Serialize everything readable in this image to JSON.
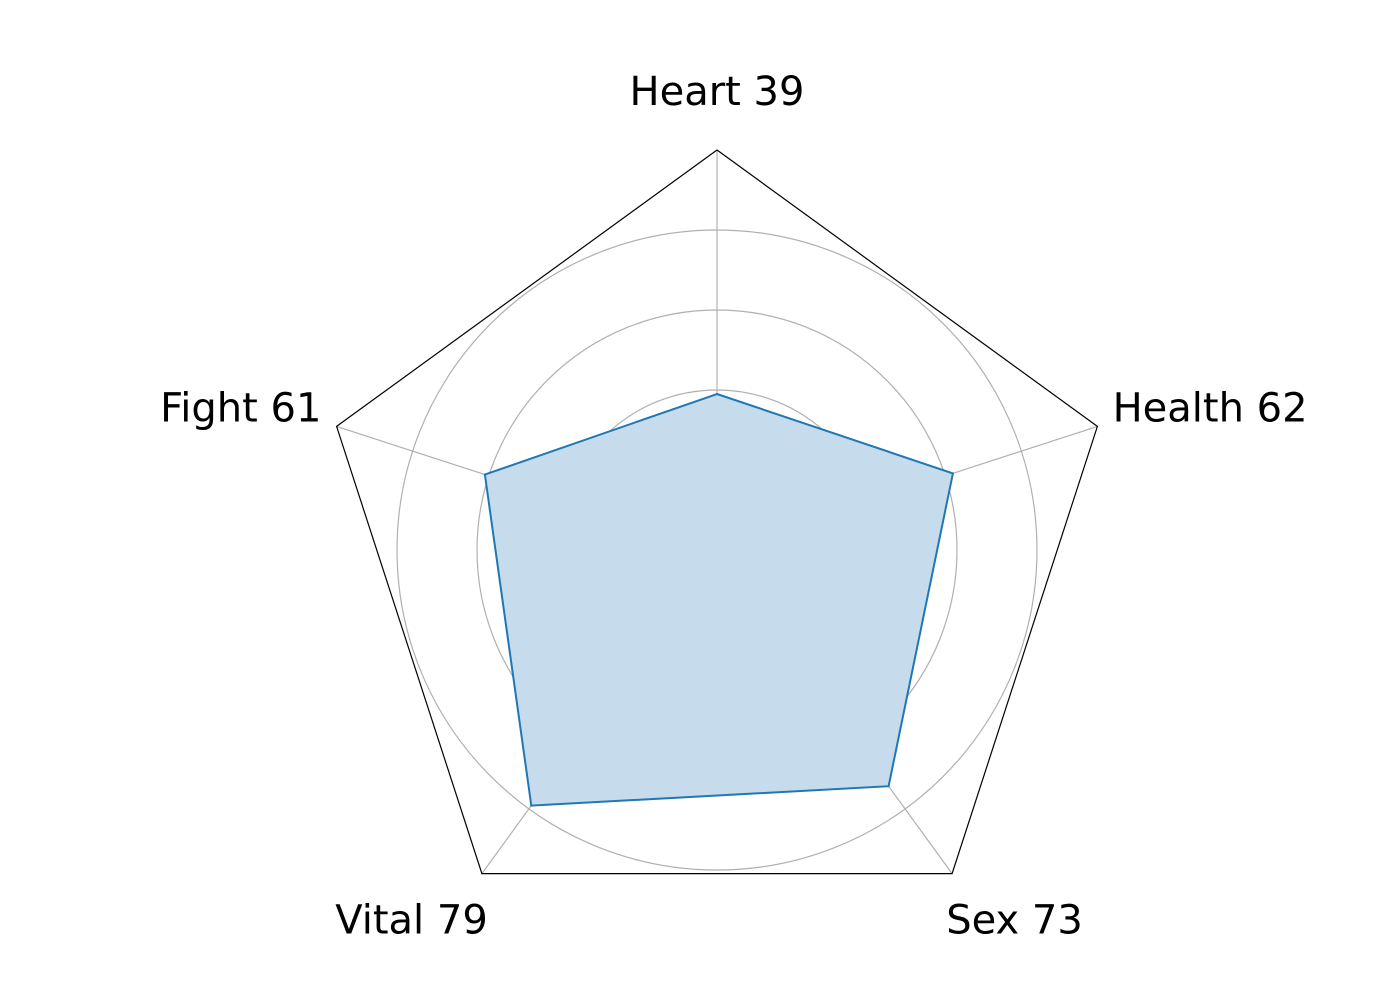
{
  "chart_data": {
    "type": "radar",
    "categories": [
      "Heart",
      "Health",
      "Sex",
      "Vital",
      "Fight"
    ],
    "labels": [
      "Heart 39",
      "Health 62",
      "Sex 73",
      "Vital 79",
      "Fight 61"
    ],
    "values": [
      39,
      62,
      73,
      79,
      61
    ],
    "rlim": [
      0,
      100
    ],
    "rings": [
      20,
      40,
      60,
      80
    ],
    "grid": true,
    "frame": "pentagon",
    "colors": {
      "line": "#1f77b4",
      "fill": "#c6dbec",
      "grid": "#b0b0b0",
      "frame": "#000000"
    }
  }
}
